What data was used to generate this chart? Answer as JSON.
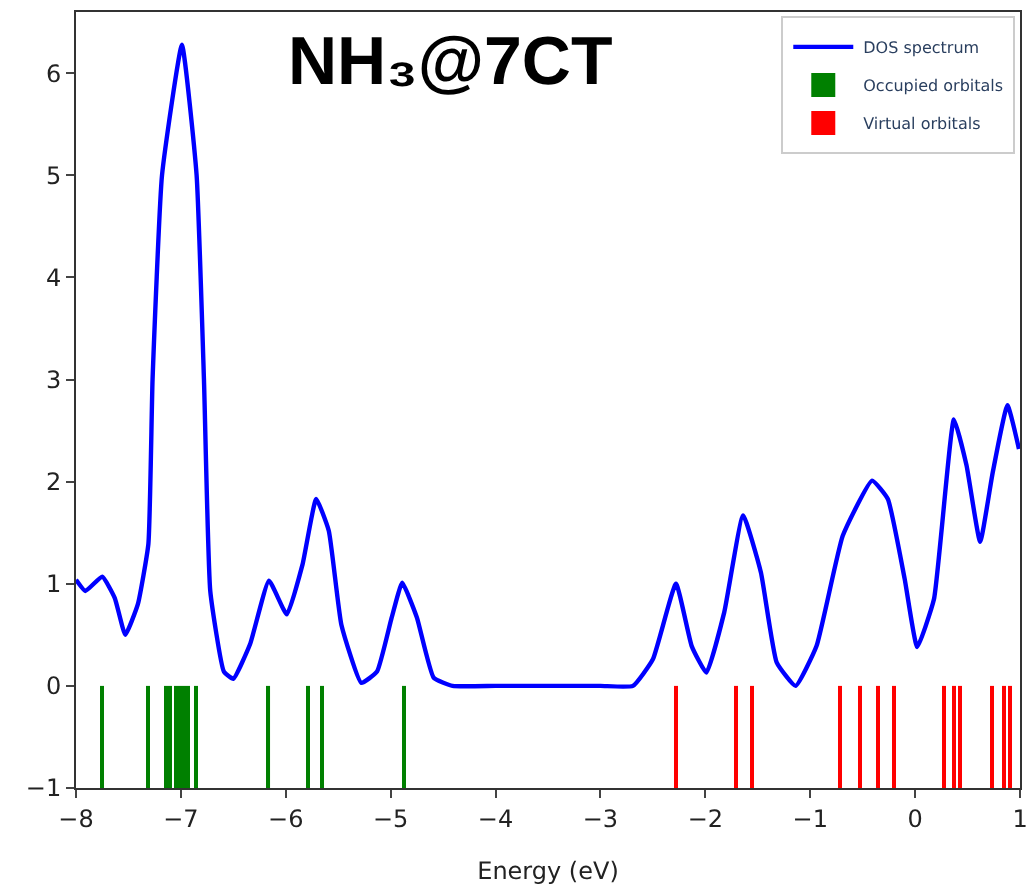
{
  "chart_data": {
    "type": "line",
    "xlabel": "Energy (eV)",
    "annotations": [
      "NH₃@7CT"
    ],
    "xlim": [
      -8,
      1
    ],
    "ylim": [
      -1,
      6.6
    ],
    "xticks": [
      -8,
      -7,
      -6,
      -5,
      -4,
      -3,
      -2,
      -1,
      0,
      1
    ],
    "yticks": [
      -1,
      0,
      1,
      2,
      3,
      4,
      5,
      6
    ],
    "legend": "top right",
    "marker": "none",
    "line_style": "solid",
    "series": [
      {
        "name": "DOS spectrum",
        "type": "line",
        "color": "#0000ff",
        "x": [
          -8,
          -7.91,
          -7.75,
          -7.63,
          -7.53,
          -7.41,
          -7.31,
          -7.27,
          -7.18,
          -6.99,
          -6.85,
          -6.78,
          -6.72,
          -6.59,
          -6.5,
          -6.34,
          -6.16,
          -5.99,
          -5.84,
          -5.71,
          -5.59,
          -5.47,
          -5.28,
          -5.13,
          -4.99,
          -4.89,
          -4.75,
          -4.59,
          -4.41,
          -4,
          -3.5,
          -3,
          -2.69,
          -2.5,
          -2.28,
          -2.13,
          -1.99,
          -1.82,
          -1.64,
          -1.47,
          -1.32,
          -1.14,
          -0.94,
          -0.69,
          -0.41,
          -0.26,
          -0.1,
          0.02,
          0.18,
          0.37,
          0.49,
          0.62,
          0.74,
          0.88,
          0.99
        ],
        "values": [
          1.04,
          0.93,
          1.07,
          0.86,
          0.5,
          0.8,
          1.39,
          3.0,
          5.0,
          6.28,
          5.0,
          3.0,
          0.93,
          0.14,
          0.07,
          0.41,
          1.03,
          0.7,
          1.19,
          1.83,
          1.52,
          0.6,
          0.03,
          0.14,
          0.67,
          1.01,
          0.67,
          0.08,
          0,
          0,
          0,
          0,
          0,
          0.26,
          1.0,
          0.39,
          0.13,
          0.72,
          1.67,
          1.11,
          0.23,
          0,
          0.39,
          1.47,
          2.01,
          1.83,
          1.05,
          0.38,
          0.85,
          2.61,
          2.16,
          1.41,
          2.09,
          2.75,
          2.32
        ]
      },
      {
        "name": "Occupied orbitals",
        "type": "bar",
        "color": "#008000",
        "x": [
          -7.75,
          -7.31,
          -7.14,
          -7.11,
          -7.05,
          -7.01,
          -6.97,
          -6.93,
          -6.86,
          -6.16,
          -5.78,
          -5.66,
          -4.88
        ],
        "base": [
          -1,
          -1,
          -1,
          -1,
          -1,
          -1,
          -1,
          -1,
          -1,
          -1,
          -1,
          -1,
          -1
        ],
        "values": [
          1,
          1,
          1,
          1,
          1,
          1,
          1,
          1,
          1,
          1,
          1,
          1,
          1
        ]
      },
      {
        "name": "Virtual orbitals",
        "type": "bar",
        "color": "#ff0000",
        "x": [
          -2.28,
          -1.7,
          -1.55,
          -0.71,
          -0.52,
          -0.36,
          -0.21,
          0.28,
          0.37,
          0.43,
          0.74,
          0.85,
          0.9
        ],
        "base": [
          -1,
          -1,
          -1,
          -1,
          -1,
          -1,
          -1,
          -1,
          -1,
          -1,
          -1,
          -1,
          -1
        ],
        "values": [
          1,
          1,
          1,
          1,
          1,
          1,
          1,
          1,
          1,
          1,
          1,
          1,
          1
        ]
      }
    ]
  }
}
